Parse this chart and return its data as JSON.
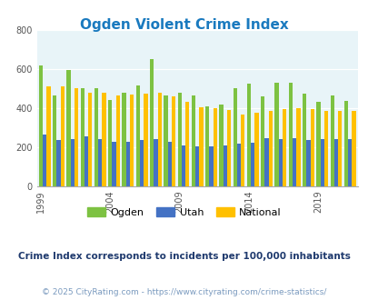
{
  "title": "Ogden Violent Crime Index",
  "years": [
    1999,
    2000,
    2001,
    2002,
    2003,
    2004,
    2005,
    2006,
    2007,
    2008,
    2009,
    2010,
    2011,
    2012,
    2013,
    2014,
    2015,
    2016,
    2017,
    2018,
    2019,
    2020,
    2021
  ],
  "ogden": [
    620,
    465,
    595,
    500,
    500,
    440,
    480,
    515,
    650,
    465,
    480,
    465,
    410,
    420,
    500,
    525,
    460,
    530,
    530,
    475,
    430,
    465,
    435
  ],
  "utah": [
    265,
    235,
    240,
    255,
    240,
    225,
    225,
    235,
    240,
    225,
    210,
    205,
    205,
    210,
    215,
    220,
    245,
    240,
    245,
    235,
    240,
    240,
    240
  ],
  "national": [
    510,
    510,
    500,
    480,
    480,
    465,
    470,
    475,
    480,
    460,
    430,
    405,
    400,
    390,
    365,
    375,
    385,
    395,
    400,
    395,
    385,
    385,
    385
  ],
  "ogden_color": "#7dc242",
  "utah_color": "#4472c4",
  "national_color": "#ffc000",
  "bg_color": "#e8f4f8",
  "ylim": [
    0,
    800
  ],
  "yticks": [
    0,
    200,
    400,
    600,
    800
  ],
  "xlabel_years": [
    1999,
    2004,
    2009,
    2014,
    2019
  ],
  "subtitle": "Crime Index corresponds to incidents per 100,000 inhabitants",
  "footer": "© 2025 CityRating.com - https://www.cityrating.com/crime-statistics/",
  "title_color": "#1a7abf",
  "subtitle_color": "#1f3a6e",
  "footer_color": "#7a9abf"
}
